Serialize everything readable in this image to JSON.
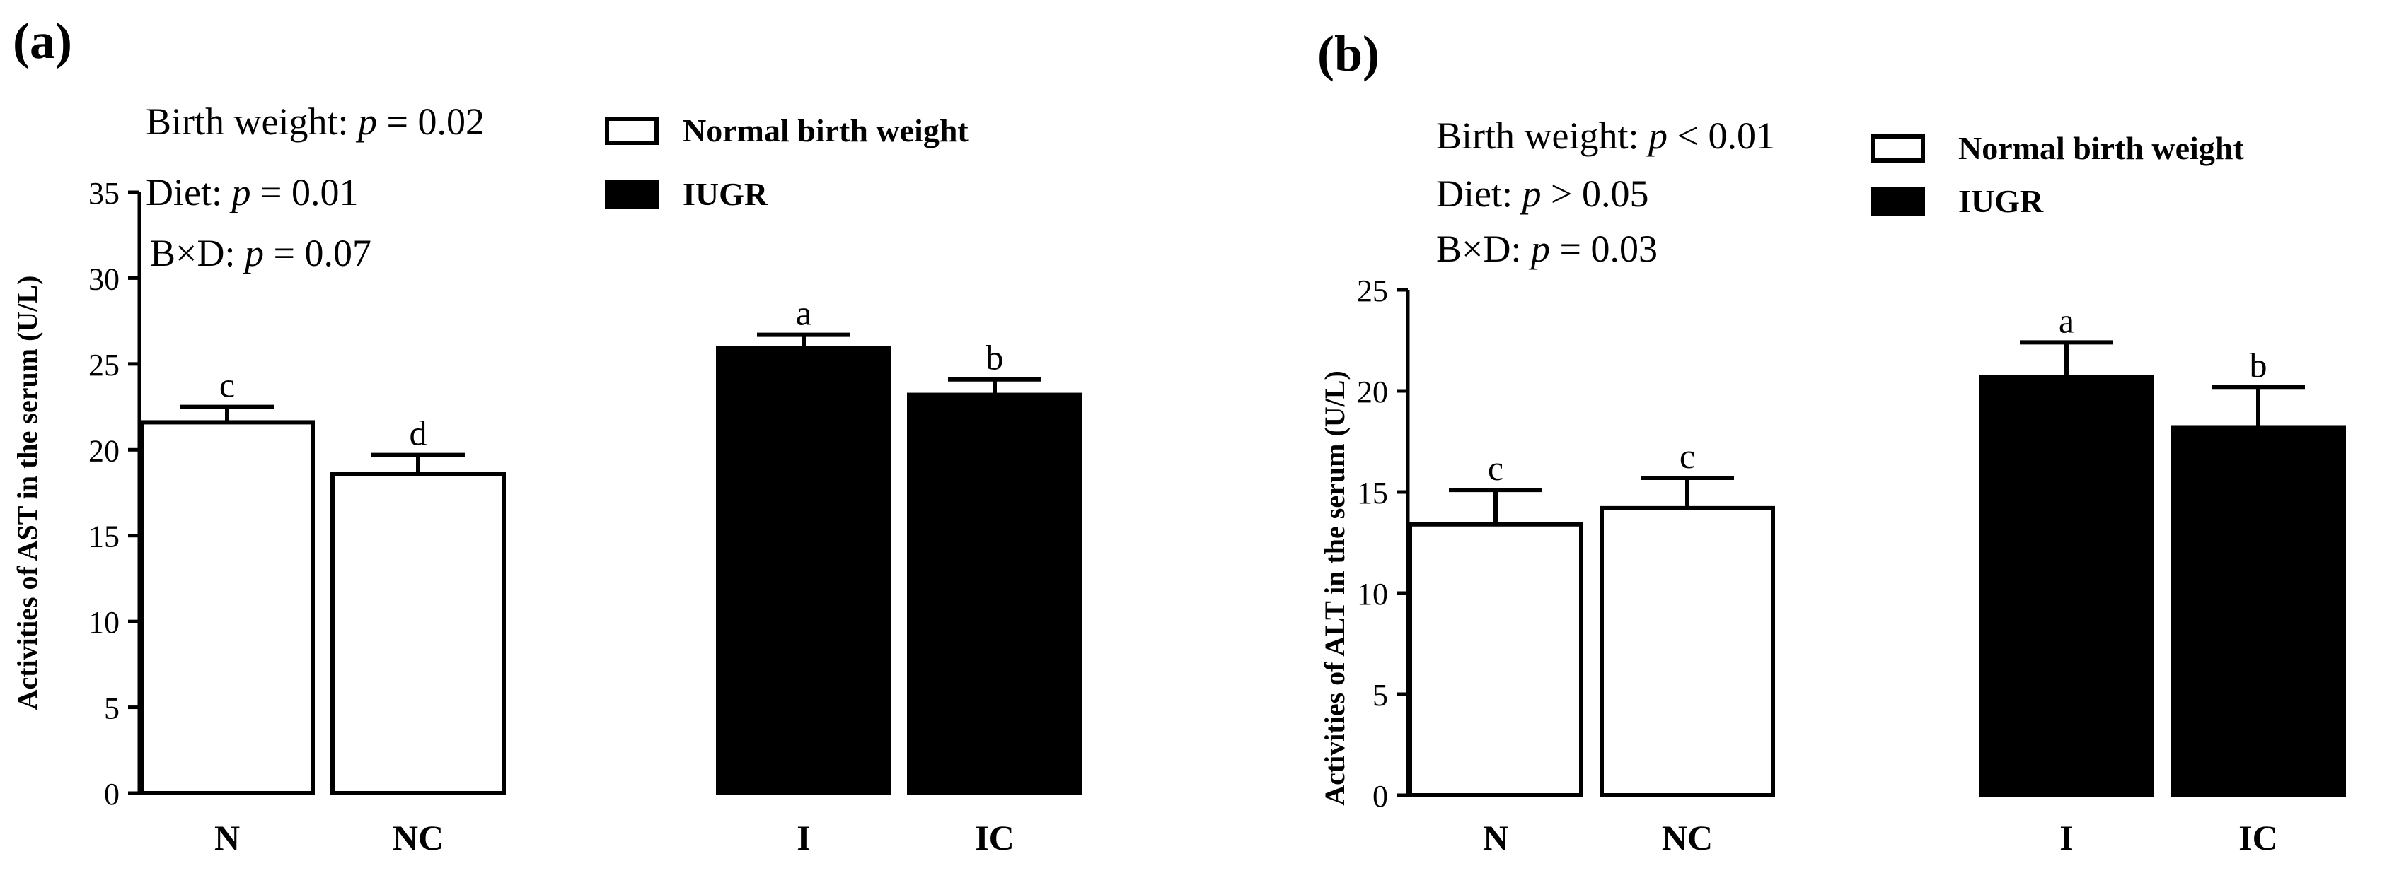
{
  "colors": {
    "normal_fill": "#ffffff",
    "iugr_fill": "#000000",
    "stroke": "#000000"
  },
  "chart_data": [
    {
      "type": "bar",
      "panel_label": "(a)",
      "ylabel": "Activities of AST in the serum (U/L)",
      "ylim": [
        0,
        35
      ],
      "yticks": [
        "0",
        "5",
        "10",
        "15",
        "20",
        "25",
        "30",
        "35"
      ],
      "categories": [
        "N",
        "NC",
        "I",
        "IC"
      ],
      "values": [
        21.6,
        18.6,
        25.9,
        23.2
      ],
      "errors": [
        0.9,
        1.1,
        0.8,
        0.9
      ],
      "letters": [
        "c",
        "d",
        "a",
        "b"
      ],
      "groups": [
        "normal",
        "normal",
        "iugr",
        "iugr"
      ],
      "legend": [
        "Normal birth weight",
        "IUGR"
      ],
      "stats": [
        {
          "label": "Birth weight: ",
          "p": "p",
          "rest": " = 0.02"
        },
        {
          "label": "Diet: ",
          "p": "p",
          "rest": " = 0.01"
        },
        {
          "label": "B×D: ",
          "p": "p",
          "rest": " = 0.07"
        }
      ]
    },
    {
      "type": "bar",
      "panel_label": "(b)",
      "ylabel": "Activities of ALT in the serum (U/L)",
      "ylim": [
        0,
        25
      ],
      "yticks": [
        "0",
        "5",
        "10",
        "15",
        "20",
        "25"
      ],
      "categories": [
        "N",
        "NC",
        "I",
        "IC"
      ],
      "values": [
        13.4,
        14.2,
        20.7,
        18.2
      ],
      "errors": [
        1.7,
        1.5,
        1.7,
        2.0
      ],
      "letters": [
        "c",
        "c",
        "a",
        "b"
      ],
      "groups": [
        "normal",
        "normal",
        "iugr",
        "iugr"
      ],
      "legend": [
        "Normal birth weight",
        "IUGR"
      ],
      "stats": [
        {
          "label": "Birth weight:  ",
          "p": "p",
          "rest": " < 0.01"
        },
        {
          "label": "Diet: ",
          "p": "p",
          "rest": " > 0.05"
        },
        {
          "label": "B×D: ",
          "p": "p",
          "rest": " = 0.03"
        }
      ]
    }
  ]
}
